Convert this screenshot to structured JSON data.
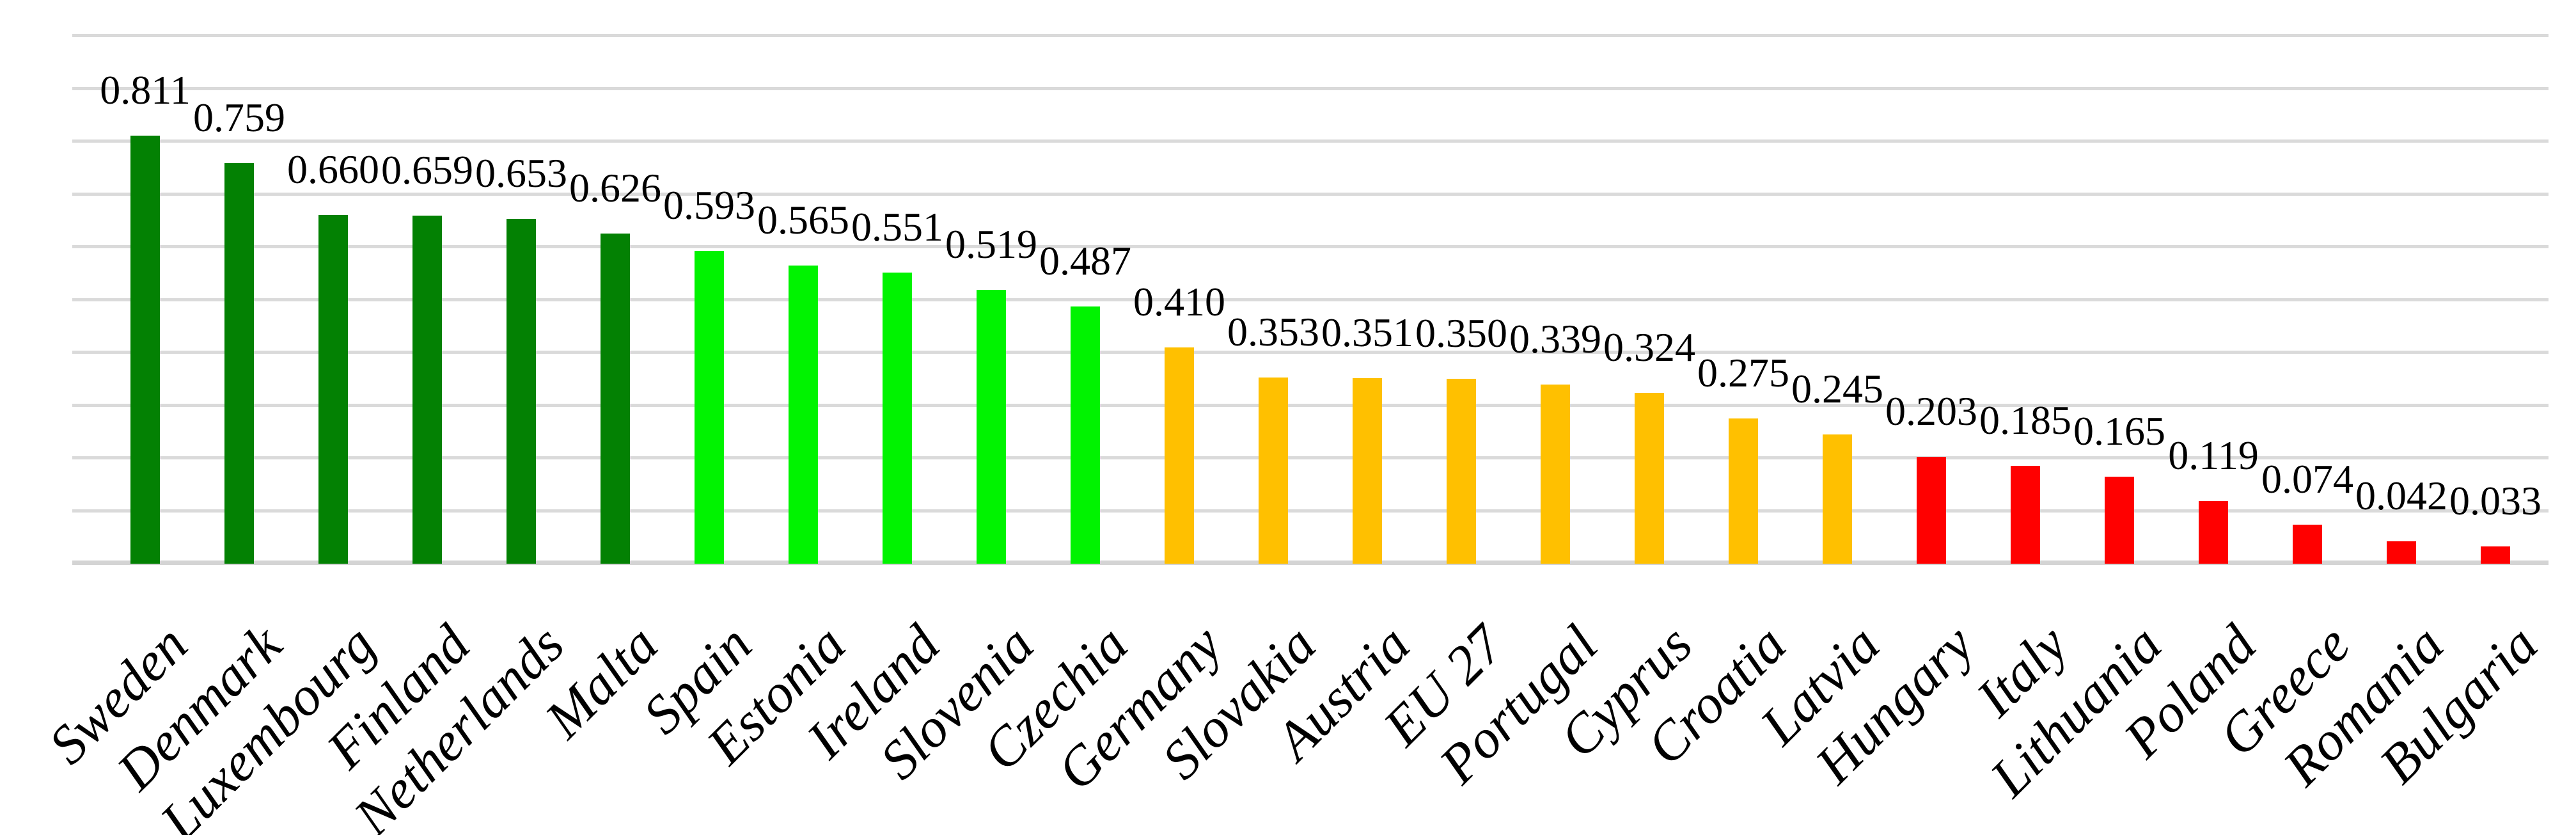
{
  "chart_data": {
    "type": "bar",
    "title": "",
    "xlabel": "",
    "ylabel": "",
    "ylim": [
      0,
      1.0
    ],
    "gridline_step": 0.1,
    "grid": true,
    "legend": false,
    "categories": [
      "Sweden",
      "Denmark",
      "Luxembourg",
      "Finland",
      "Netherlands",
      "Malta",
      "Spain",
      "Estonia",
      "Ireland",
      "Slovenia",
      "Czechia",
      "Germany",
      "Slovakia",
      "Austria",
      "EU 27",
      "Portugal",
      "Cyprus",
      "Croatia",
      "Latvia",
      "Hungary",
      "Italy",
      "Lithuania",
      "Poland",
      "Greece",
      "Romania",
      "Bulgaria"
    ],
    "values": [
      0.811,
      0.759,
      0.66,
      0.659,
      0.653,
      0.626,
      0.593,
      0.565,
      0.551,
      0.519,
      0.487,
      0.41,
      0.353,
      0.351,
      0.35,
      0.339,
      0.324,
      0.275,
      0.245,
      0.203,
      0.185,
      0.165,
      0.119,
      0.074,
      0.042,
      0.033
    ],
    "value_labels": [
      "0.811",
      "0.759",
      "0.660",
      "0.659",
      "0.653",
      "0.626",
      "0.593",
      "0.565",
      "0.551",
      "0.519",
      "0.487",
      "0.410",
      "0.353",
      "0.351",
      "0.350",
      "0.339",
      "0.324",
      "0.275",
      "0.245",
      "0.203",
      "0.185",
      "0.165",
      "0.119",
      "0.074",
      "0.042",
      "0.033"
    ],
    "color_groups": [
      {
        "name": "dark-green",
        "color": "#038103",
        "from": 0,
        "to": 5
      },
      {
        "name": "bright-green",
        "color": "#00F300",
        "from": 6,
        "to": 10
      },
      {
        "name": "orange",
        "color": "#FFC000",
        "from": 11,
        "to": 18
      },
      {
        "name": "red",
        "color": "#FF0000",
        "from": 19,
        "to": 25
      }
    ],
    "gridline_color": "#DADADA",
    "axis_line_color": "#D4D4D4",
    "label_color": "#000000",
    "background": "#FFFFFF"
  }
}
